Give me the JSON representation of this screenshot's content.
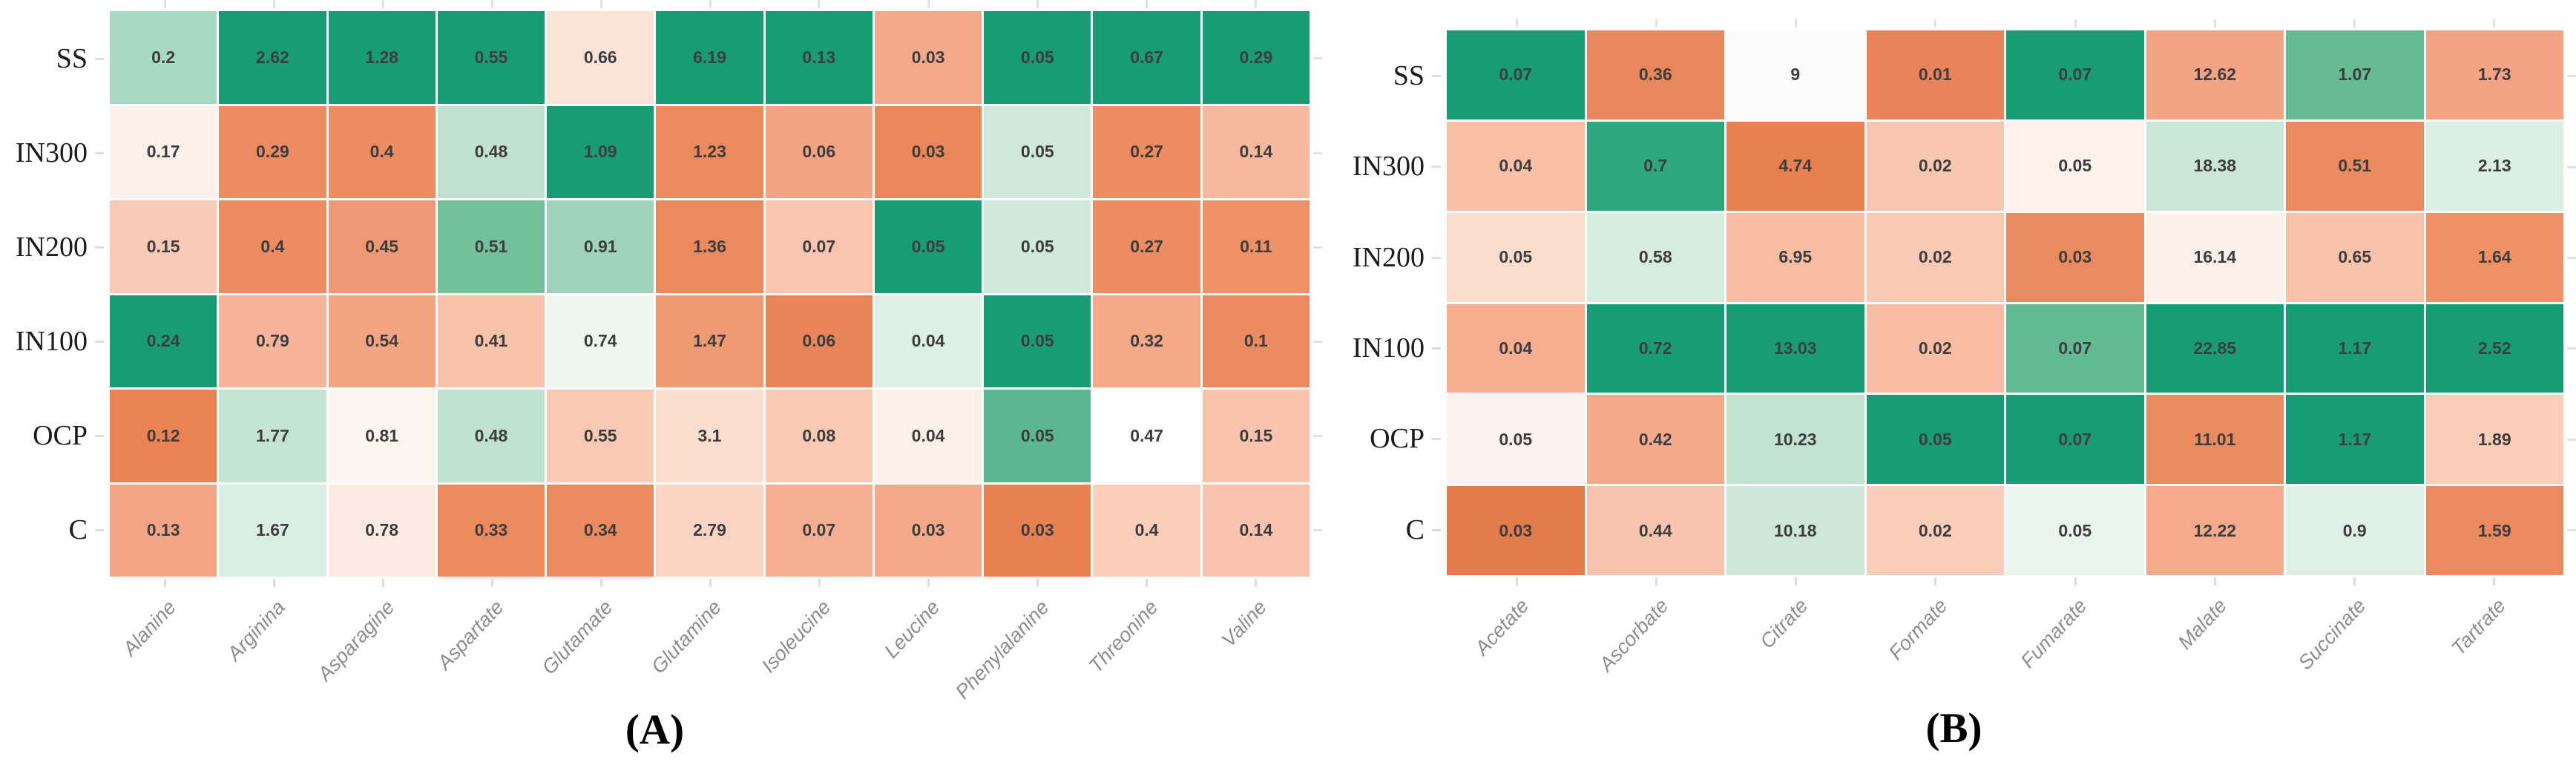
{
  "colors": {
    "green_high": "#189c73",
    "orange_low": "#e37c4b",
    "neutral_mid": "#ffffff",
    "tick": "#dedede",
    "column_label_text": "#8d8d8d",
    "value_text": "#3d3d3d",
    "row_label_text": "#1c1c1c"
  },
  "chart_data": [
    {
      "type": "heatmap",
      "caption": "(A)",
      "legend": "none",
      "layout": {
        "grid": "white 3px gaps",
        "ticks": "all sides",
        "column_label_rotation_deg": -47
      },
      "colorscale": {
        "low": "#e37c4b",
        "mid": "#ffffff",
        "high": "#189c73"
      },
      "rows": [
        "SS",
        "IN300",
        "IN200",
        "IN100",
        "OCP",
        "C"
      ],
      "columns": [
        "Alanine",
        "Arginina",
        "Asparagine",
        "Aspartate",
        "Glutamate",
        "Glutamine",
        "Isoleucine",
        "Leucine",
        "Phenylalanine",
        "Threonine",
        "Valine"
      ],
      "values": [
        [
          0.2,
          2.62,
          1.28,
          0.55,
          0.66,
          6.19,
          0.13,
          0.03,
          0.05,
          0.67,
          0.29
        ],
        [
          0.17,
          0.29,
          0.4,
          0.48,
          1.09,
          1.23,
          0.06,
          0.03,
          0.05,
          0.27,
          0.14
        ],
        [
          0.15,
          0.4,
          0.45,
          0.51,
          0.91,
          1.36,
          0.07,
          0.05,
          0.05,
          0.27,
          0.11
        ],
        [
          0.24,
          0.79,
          0.54,
          0.41,
          0.74,
          1.47,
          0.06,
          0.04,
          0.05,
          0.32,
          0.1
        ],
        [
          0.12,
          1.77,
          0.81,
          0.48,
          0.55,
          3.1,
          0.08,
          0.04,
          0.05,
          0.47,
          0.15
        ],
        [
          0.13,
          1.67,
          0.78,
          0.33,
          0.34,
          2.79,
          0.07,
          0.03,
          0.03,
          0.4,
          0.14
        ]
      ],
      "cell_colors": [
        [
          "#a9d9c2",
          "#189c73",
          "#189c73",
          "#189c73",
          "#fce3d7",
          "#189c73",
          "#189c73",
          "#f4a98b",
          "#189c73",
          "#189c73",
          "#189c73"
        ],
        [
          "#fdf1eb",
          "#ec8c60",
          "#ec8c60",
          "#c0e2cf",
          "#189c73",
          "#eb8a5d",
          "#f2a381",
          "#e9865a",
          "#cfe9da",
          "#ec8c60",
          "#f8b89e"
        ],
        [
          "#f9cab5",
          "#ec8c60",
          "#ef9874",
          "#74c09b",
          "#9ed4b9",
          "#eb8a5d",
          "#f9c5ae",
          "#189c73",
          "#cfe9da",
          "#ec8c60",
          "#ee9165"
        ],
        [
          "#189c73",
          "#f7b49a",
          "#f3a480",
          "#f9c3ab",
          "#eef7f1",
          "#ee9a73",
          "#e98659",
          "#def0e6",
          "#189c73",
          "#f5a988",
          "#ec8b5f"
        ],
        [
          "#e98354",
          "#c4e4d2",
          "#fdf5f0",
          "#c0e2d0",
          "#f9c9b3",
          "#fcdecf",
          "#f9c9b3",
          "#fdf0e9",
          "#5cb68f",
          "#ffffff",
          "#f9c3ac"
        ],
        [
          "#f4a586",
          "#d9eee4",
          "#fcebe2",
          "#eb8a5d",
          "#ea8a5e",
          "#fbd4c3",
          "#f6ae92",
          "#f4a98b",
          "#e8814f",
          "#fbcfba",
          "#f9c3ad"
        ]
      ]
    },
    {
      "type": "heatmap",
      "caption": "(B)",
      "legend": "none",
      "layout": {
        "grid": "white 3px gaps",
        "ticks": "all sides",
        "column_label_rotation_deg": -47
      },
      "colorscale": {
        "low": "#e37c4b",
        "mid": "#ffffff",
        "high": "#189c73"
      },
      "rows": [
        "SS",
        "IN300",
        "IN200",
        "IN100",
        "OCP",
        "C"
      ],
      "columns": [
        "Acetate",
        "Ascorbate",
        "Citrate",
        "Formate",
        "Fumarate",
        "Malate",
        "Succinate",
        "Tartrate"
      ],
      "values": [
        [
          0.07,
          0.36,
          9,
          0.01,
          0.07,
          12.62,
          1.07,
          1.73
        ],
        [
          0.04,
          0.7,
          4.74,
          0.02,
          0.05,
          18.38,
          0.51,
          2.13
        ],
        [
          0.05,
          0.58,
          6.95,
          0.02,
          0.03,
          16.14,
          0.65,
          1.64
        ],
        [
          0.04,
          0.72,
          13.03,
          0.02,
          0.07,
          22.85,
          1.17,
          2.52
        ],
        [
          0.05,
          0.42,
          10.23,
          0.05,
          0.07,
          11.01,
          1.17,
          1.89
        ],
        [
          0.03,
          0.44,
          10.18,
          0.02,
          0.05,
          12.22,
          0.9,
          1.59
        ]
      ],
      "cell_colors": [
        [
          "#189c73",
          "#e8875d",
          "#fbfbfb",
          "#e8835a",
          "#189c73",
          "#f4a383",
          "#66bb92",
          "#f4a383"
        ],
        [
          "#f9bfa7",
          "#2fa77e",
          "#e8814f",
          "#f9c7b1",
          "#fdf2ec",
          "#cbe7d7",
          "#ea8a5e",
          "#dcefe5"
        ],
        [
          "#fcdccc",
          "#d6ecdf",
          "#f8bda3",
          "#f9c9b4",
          "#e98a5f",
          "#fdefe9",
          "#f9c3ab",
          "#ee9166"
        ],
        [
          "#f6ad90",
          "#189c73",
          "#189c73",
          "#f8bda4",
          "#62b992",
          "#189c73",
          "#189c73",
          "#189c73"
        ],
        [
          "#fdf3ee",
          "#f5a98b",
          "#c2e3d0",
          "#189c73",
          "#189c73",
          "#eb8b60",
          "#189c73",
          "#fbcdb9"
        ],
        [
          "#e37c4b",
          "#f9c4ad",
          "#cde8d8",
          "#fbceba",
          "#ebf5ef",
          "#f6aa8c",
          "#def0e7",
          "#ea8a5e"
        ]
      ]
    }
  ]
}
